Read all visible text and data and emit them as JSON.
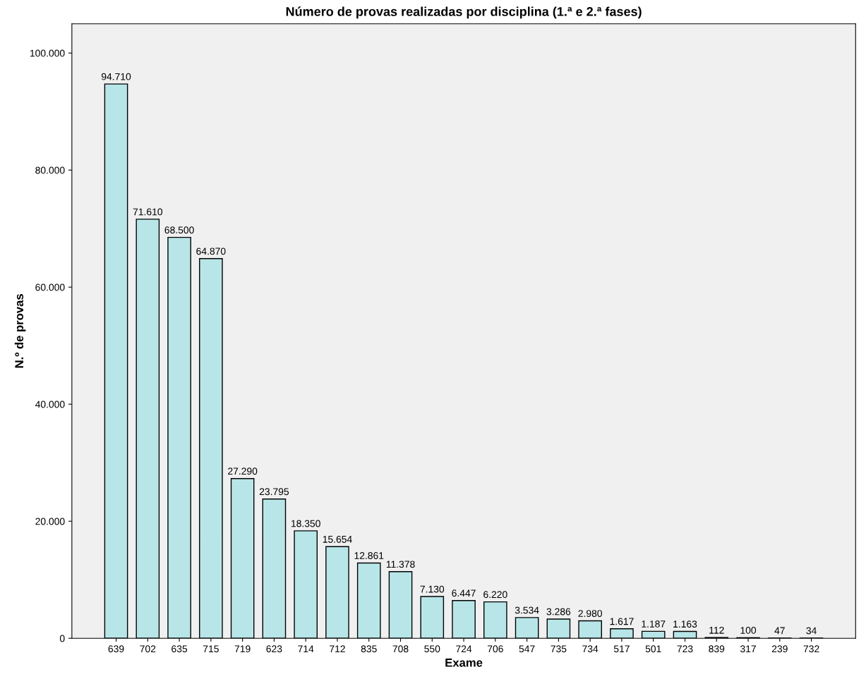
{
  "chart_data": {
    "type": "bar",
    "title": "Número de provas realizadas por disciplina (1.ª e 2.ª fases)",
    "xlabel": "Exame",
    "ylabel": "N.º de provas",
    "categories": [
      "639",
      "702",
      "635",
      "715",
      "719",
      "623",
      "714",
      "712",
      "835",
      "708",
      "550",
      "724",
      "706",
      "547",
      "735",
      "734",
      "517",
      "501",
      "723",
      "839",
      "317",
      "239",
      "732"
    ],
    "values": [
      94710,
      71610,
      68500,
      64870,
      27290,
      23795,
      18350,
      15654,
      12861,
      11378,
      7130,
      6447,
      6220,
      3534,
      3286,
      2980,
      1617,
      1187,
      1163,
      112,
      100,
      47,
      34
    ],
    "value_labels": [
      "94.710",
      "71.610",
      "68.500",
      "64.870",
      "27.290",
      "23.795",
      "18.350",
      "15.654",
      "12.861",
      "11.378",
      "7.130",
      "6.447",
      "6.220",
      "3.534",
      "3.286",
      "2.980",
      "1.617",
      "1.187",
      "1.163",
      "112",
      "100",
      "47",
      "34"
    ],
    "color": "#b8e6e8",
    "ylim": [
      0,
      105000
    ],
    "yticks": [
      0,
      {
        "value": 20000,
        "label": "20.000"
      },
      {
        "value": 40000,
        "label": "40.000"
      },
      {
        "value": 60000,
        "label": "60.000"
      },
      {
        "value": 80000,
        "label": "80.000"
      },
      {
        "value": 100000,
        "label": "100.000"
      }
    ],
    "grid": false,
    "legend": false
  }
}
